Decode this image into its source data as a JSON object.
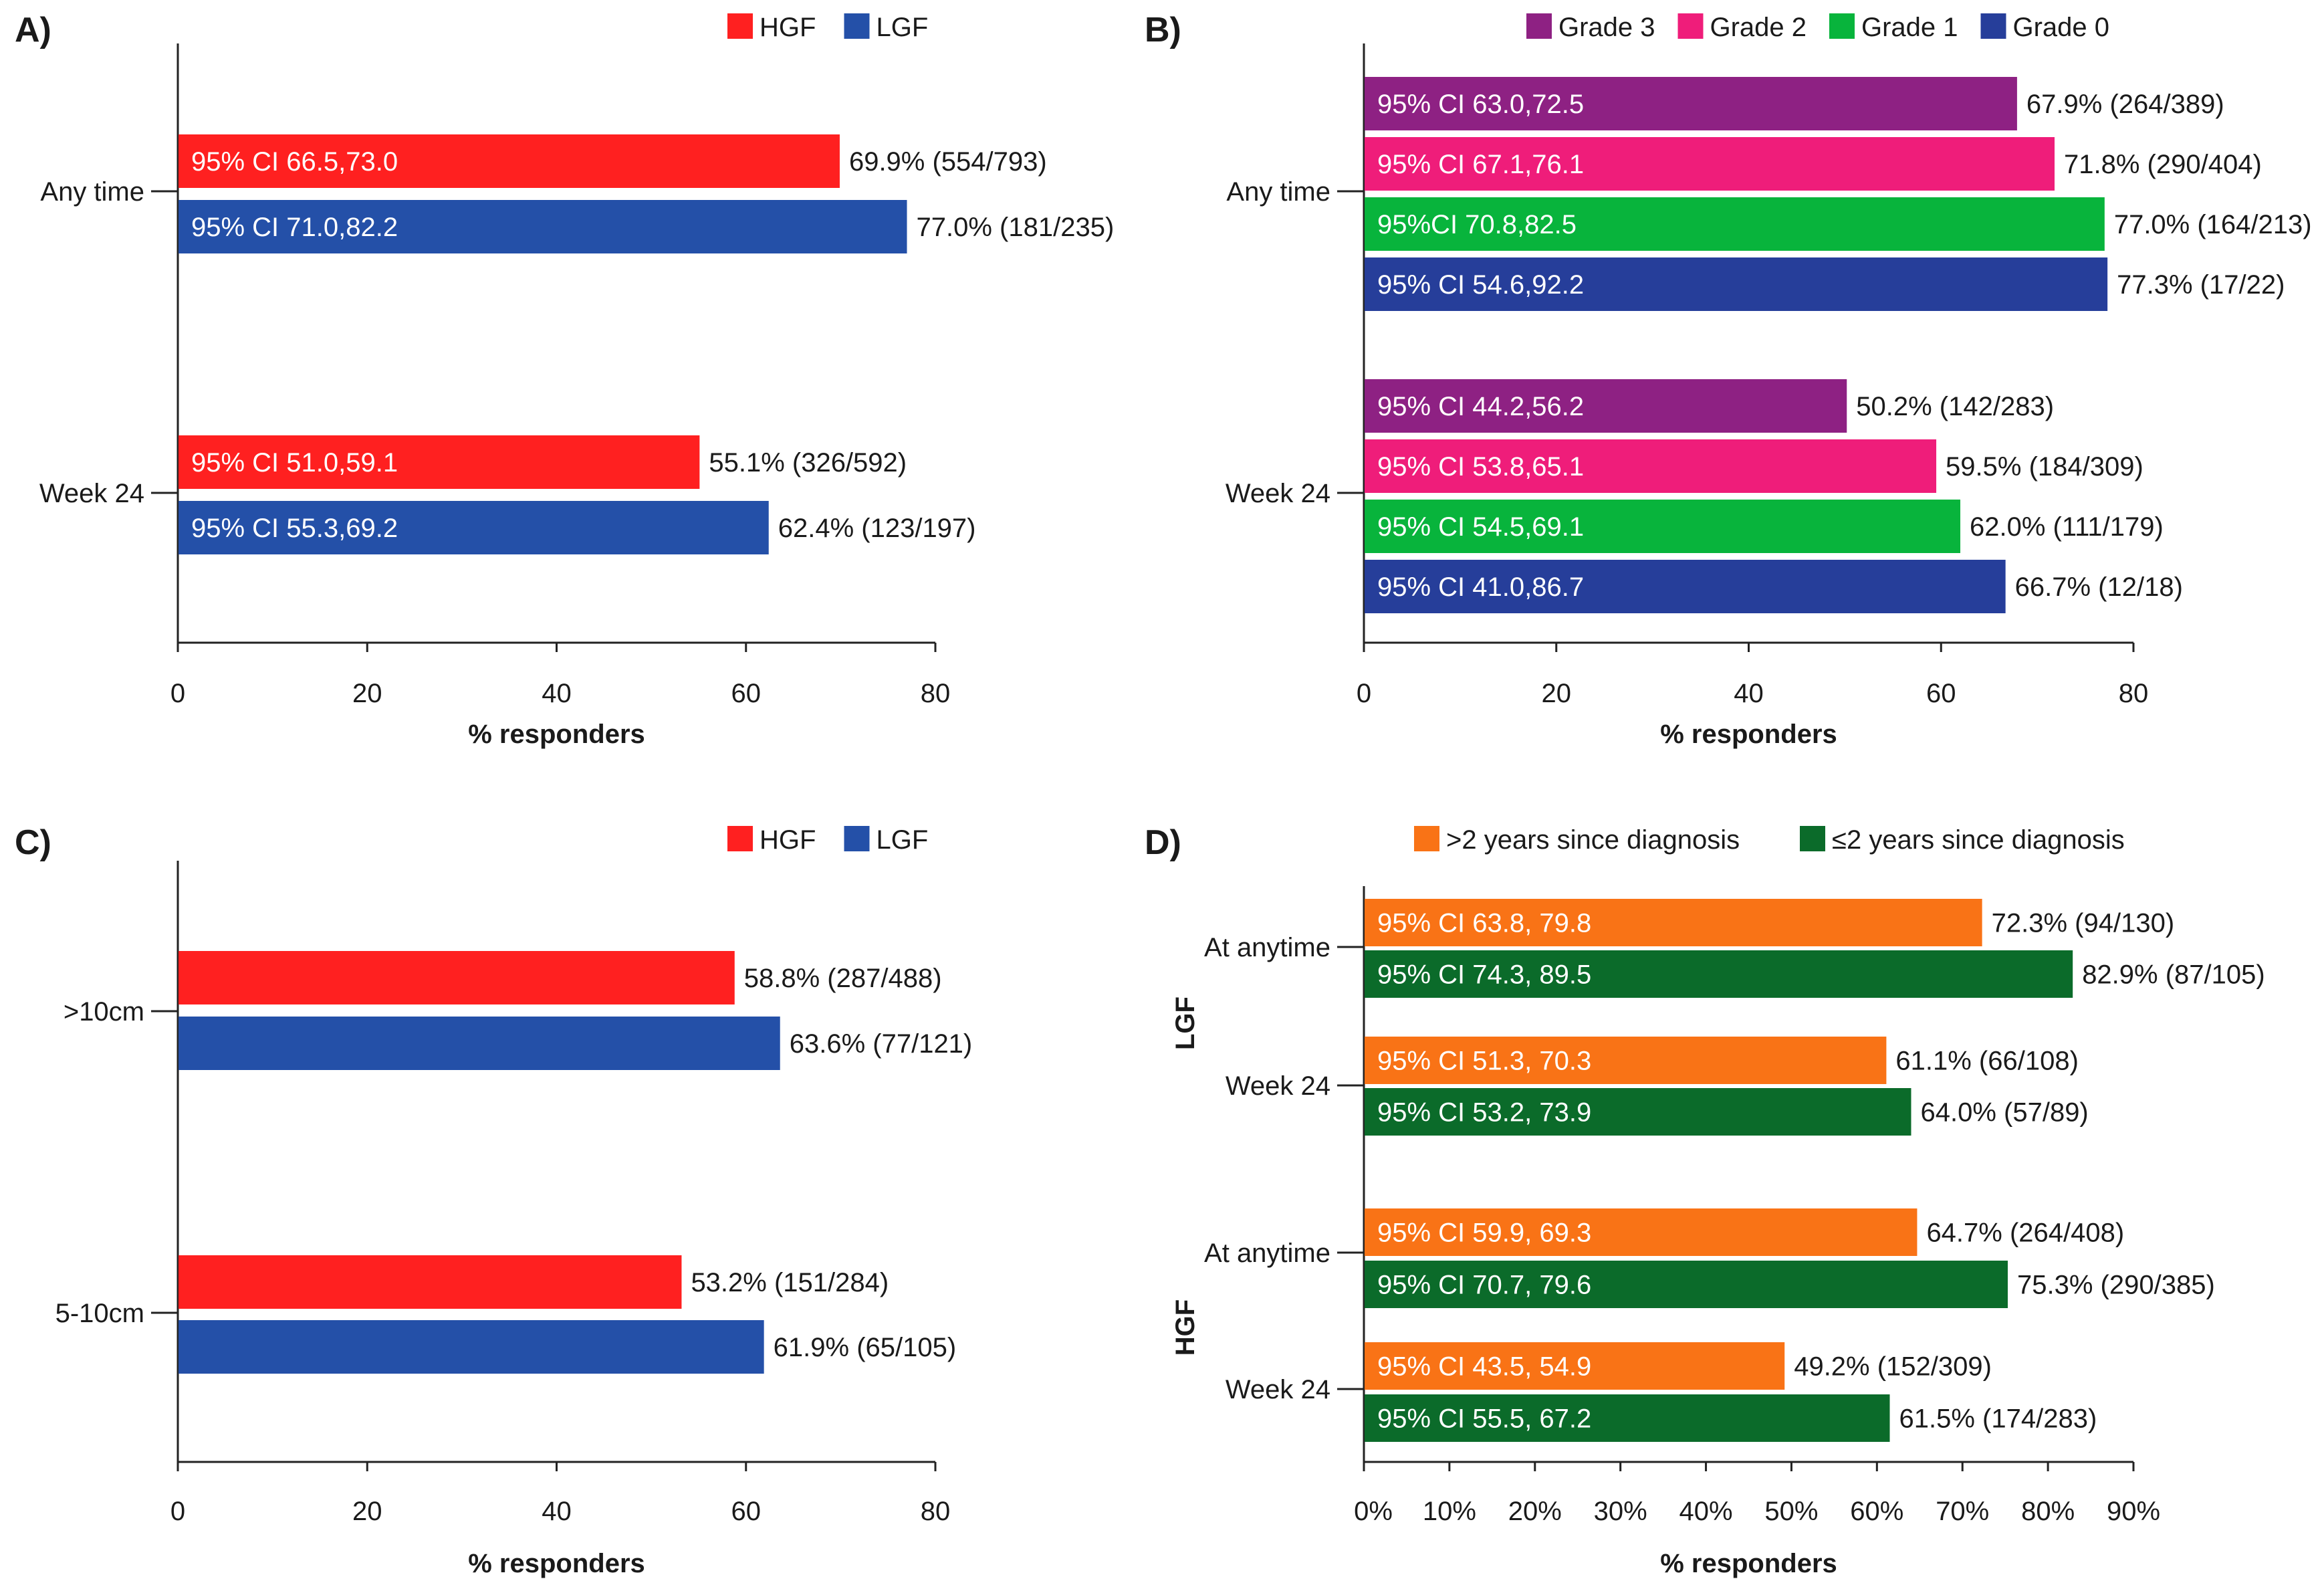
{
  "chart_data": [
    {
      "id": "A",
      "letter": "A)",
      "type": "bar",
      "orientation": "horizontal",
      "xlabel": "% responders",
      "xlim": [
        0,
        80
      ],
      "xticks": [
        "0",
        "20",
        "40",
        "60",
        "80"
      ],
      "legend": [
        {
          "name": "HGF",
          "color": "#ff2020"
        },
        {
          "name": "LGF",
          "color": "#2450a8"
        }
      ],
      "categories": [
        "Any time",
        "Week 24"
      ],
      "bars": [
        [
          {
            "series": "HGF",
            "value": 69.9,
            "ci": "95% CI 66.5,73.0",
            "label": "69.9% (554/793)"
          },
          {
            "series": "LGF",
            "value": 77.0,
            "ci": "95% CI 71.0,82.2",
            "label": "77.0% (181/235)"
          }
        ],
        [
          {
            "series": "HGF",
            "value": 55.1,
            "ci": "95% CI 51.0,59.1",
            "label": "55.1% (326/592)"
          },
          {
            "series": "LGF",
            "value": 62.4,
            "ci": "95% CI 55.3,69.2",
            "label": "62.4% (123/197)"
          }
        ]
      ]
    },
    {
      "id": "B",
      "letter": "B)",
      "type": "bar",
      "orientation": "horizontal",
      "xlabel": "% responders",
      "xlim": [
        0,
        80
      ],
      "xticks": [
        "0",
        "20",
        "40",
        "60",
        "80"
      ],
      "legend": [
        {
          "name": "Grade 3",
          "color": "#8e2183"
        },
        {
          "name": "Grade 2",
          "color": "#ef1d7a"
        },
        {
          "name": "Grade 1",
          "color": "#08b43c"
        },
        {
          "name": "Grade 0",
          "color": "#263e9a"
        }
      ],
      "categories": [
        "Any time",
        "Week 24"
      ],
      "bars": [
        [
          {
            "series": "Grade 3",
            "value": 67.9,
            "ci": "95% CI 63.0,72.5",
            "label": "67.9% (264/389)"
          },
          {
            "series": "Grade 2",
            "value": 71.8,
            "ci": "95% CI 67.1,76.1",
            "label": "71.8% (290/404)"
          },
          {
            "series": "Grade 1",
            "value": 77.0,
            "ci": "95%CI 70.8,82.5",
            "label": "77.0% (164/213)"
          },
          {
            "series": "Grade 0",
            "value": 77.3,
            "ci": "95% CI 54.6,92.2",
            "label": "77.3% (17/22)"
          }
        ],
        [
          {
            "series": "Grade 3",
            "value": 50.2,
            "ci": "95% CI 44.2,56.2",
            "label": "50.2% (142/283)"
          },
          {
            "series": "Grade 2",
            "value": 59.5,
            "ci": "95% CI 53.8,65.1",
            "label": "59.5% (184/309)"
          },
          {
            "series": "Grade 1",
            "value": 62.0,
            "ci": "95% CI 54.5,69.1",
            "label": "62.0% (111/179)"
          },
          {
            "series": "Grade 0",
            "value": 66.7,
            "ci": "95% CI 41.0,86.7",
            "label": "66.7% (12/18)"
          }
        ]
      ]
    },
    {
      "id": "C",
      "letter": "C)",
      "type": "bar",
      "orientation": "horizontal",
      "xlabel": "% responders",
      "xlim": [
        0,
        80
      ],
      "xticks": [
        "0",
        "20",
        "40",
        "60",
        "80"
      ],
      "legend": [
        {
          "name": "HGF",
          "color": "#ff2020"
        },
        {
          "name": "LGF",
          "color": "#2450a8"
        }
      ],
      "categories": [
        ">10cm",
        "5-10cm"
      ],
      "bars": [
        [
          {
            "series": "HGF",
            "value": 58.8,
            "ci": "",
            "label": "58.8% (287/488)"
          },
          {
            "series": "LGF",
            "value": 63.6,
            "ci": "",
            "label": "63.6% (77/121)"
          }
        ],
        [
          {
            "series": "HGF",
            "value": 53.2,
            "ci": "",
            "label": "53.2% (151/284)"
          },
          {
            "series": "LGF",
            "value": 61.9,
            "ci": "",
            "label": "61.9% (65/105)"
          }
        ]
      ]
    },
    {
      "id": "D",
      "letter": "D)",
      "type": "bar",
      "orientation": "horizontal",
      "xlabel": "% responders",
      "xlim": [
        0,
        90
      ],
      "xticks": [
        "0%",
        "10%",
        "20%",
        "30%",
        "40%",
        "50%",
        "60%",
        "70%",
        "80%",
        "90%"
      ],
      "legend": [
        {
          "name": ">2 years since diagnosis",
          "color": "#f97316"
        },
        {
          "name": "≤2 years since diagnosis",
          "color": "#0b6b2a"
        }
      ],
      "groups": [
        "LGF",
        "HGF"
      ],
      "categories": [
        "At anytime",
        "Week 24",
        "At anytime",
        "Week 24"
      ],
      "bars": [
        [
          {
            "series": ">2 years since diagnosis",
            "value": 72.3,
            "ci": "95% CI 63.8, 79.8",
            "label": "72.3% (94/130)"
          },
          {
            "series": "≤2 years since diagnosis",
            "value": 82.9,
            "ci": "95% CI 74.3, 89.5",
            "label": "82.9% (87/105)"
          }
        ],
        [
          {
            "series": ">2 years since diagnosis",
            "value": 61.1,
            "ci": "95% CI 51.3, 70.3",
            "label": "61.1% (66/108)"
          },
          {
            "series": "≤2 years since diagnosis",
            "value": 64.0,
            "ci": "95% CI 53.2, 73.9",
            "label": "64.0% (57/89)"
          }
        ],
        [
          {
            "series": ">2 years since diagnosis",
            "value": 64.7,
            "ci": "95% CI 59.9, 69.3",
            "label": "64.7% (264/408)"
          },
          {
            "series": "≤2 years since diagnosis",
            "value": 75.3,
            "ci": "95% CI 70.7, 79.6",
            "label": "75.3% (290/385)"
          }
        ],
        [
          {
            "series": ">2 years since diagnosis",
            "value": 49.2,
            "ci": "95% CI 43.5, 54.9",
            "label": "49.2% (152/309)"
          },
          {
            "series": "≤2 years since diagnosis",
            "value": 61.5,
            "ci": "95% CI  55.5, 67.2",
            "label": "61.5% (174/283)"
          }
        ]
      ]
    }
  ]
}
